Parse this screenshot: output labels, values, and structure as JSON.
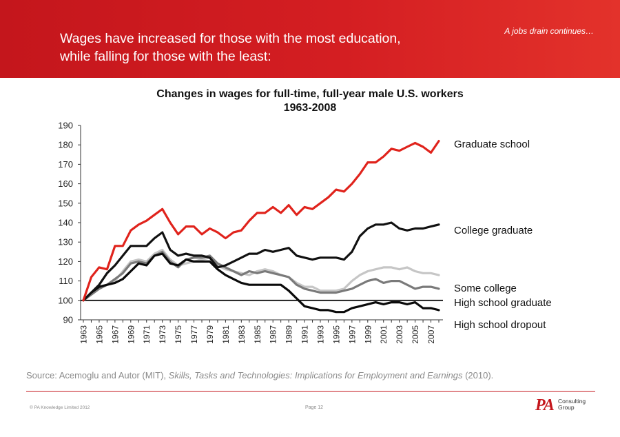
{
  "header": {
    "title_line1": "Wages have increased for those with the most education,",
    "title_line2": "while falling for those with the least:",
    "tag": "A jobs drain continues…",
    "banner_color": "#d41e22"
  },
  "source": {
    "prefix": "Source: Acemoglu and Autor (MIT), ",
    "work": "Skills, Tasks and Technologies: Implications for Employment and Earnings",
    "suffix": " (2010)."
  },
  "footer": {
    "copyright": "© PA Knowledge Limited 2012",
    "page": "Page 12",
    "logo_text": "PA",
    "logo_sub_line1": "Consulting",
    "logo_sub_line2": "Group"
  },
  "chart_data": {
    "type": "line",
    "title_line1": "Changes in wages for full-time, full-year male U.S. workers",
    "title_line2": "1963-2008",
    "xlabel": "",
    "ylabel": "",
    "ylim": [
      90,
      190
    ],
    "yticks": [
      90,
      100,
      110,
      120,
      130,
      140,
      150,
      160,
      170,
      180,
      190
    ],
    "xlim": [
      1963,
      2008
    ],
    "xticks": [
      1963,
      1965,
      1967,
      1969,
      1971,
      1973,
      1975,
      1977,
      1979,
      1981,
      1983,
      1985,
      1987,
      1989,
      1991,
      1993,
      1995,
      1997,
      1999,
      2001,
      2003,
      2005,
      2007
    ],
    "grid": false,
    "legend": "right",
    "reference_line": 100,
    "x": [
      1963,
      1964,
      1965,
      1966,
      1967,
      1968,
      1969,
      1970,
      1971,
      1972,
      1973,
      1974,
      1975,
      1976,
      1977,
      1978,
      1979,
      1980,
      1981,
      1982,
      1983,
      1984,
      1985,
      1986,
      1987,
      1988,
      1989,
      1990,
      1991,
      1992,
      1993,
      1994,
      1995,
      1996,
      1997,
      1998,
      1999,
      2000,
      2001,
      2002,
      2003,
      2004,
      2005,
      2006,
      2007,
      2008
    ],
    "series": [
      {
        "name": "Graduate school",
        "color": "#e0231c",
        "values": [
          100,
          112,
          117,
          116,
          128,
          128,
          136,
          139,
          141,
          144,
          147,
          140,
          134,
          138,
          138,
          134,
          137,
          135,
          132,
          135,
          136,
          141,
          145,
          145,
          148,
          145,
          149,
          144,
          148,
          147,
          150,
          153,
          157,
          156,
          160,
          165,
          171,
          171,
          174,
          178,
          177,
          179,
          181,
          179,
          176,
          182
        ]
      },
      {
        "name": "College graduate",
        "color": "#111111",
        "values": [
          100,
          104,
          108,
          114,
          118,
          123,
          128,
          128,
          128,
          132,
          135,
          126,
          123,
          124,
          123,
          123,
          122,
          117,
          118,
          120,
          122,
          124,
          124,
          126,
          125,
          126,
          127,
          123,
          122,
          121,
          122,
          122,
          122,
          121,
          125,
          133,
          137,
          139,
          139,
          140,
          137,
          136,
          137,
          137,
          138,
          139
        ]
      },
      {
        "name": "Some college",
        "color": "#c6c6c6",
        "values": [
          100,
          103,
          106,
          108,
          110,
          115,
          120,
          121,
          120,
          124,
          126,
          121,
          118,
          119,
          120,
          121,
          122,
          118,
          116,
          115,
          114,
          113,
          115,
          116,
          115,
          113,
          112,
          109,
          107,
          107,
          105,
          105,
          105,
          106,
          110,
          113,
          115,
          116,
          117,
          117,
          116,
          117,
          115,
          114,
          114,
          113
        ]
      },
      {
        "name": "High school graduate",
        "color": "#7a7a7a",
        "values": [
          100,
          103,
          106,
          108,
          111,
          114,
          119,
          120,
          119,
          123,
          125,
          120,
          117,
          121,
          122,
          122,
          123,
          119,
          117,
          115,
          113,
          115,
          114,
          115,
          114,
          113,
          112,
          108,
          106,
          105,
          104,
          104,
          104,
          105,
          106,
          108,
          110,
          111,
          109,
          110,
          110,
          108,
          106,
          107,
          107,
          106
        ]
      },
      {
        "name": "High school dropout",
        "color": "#0a0a0a",
        "values": [
          100,
          104,
          107,
          108,
          109,
          111,
          115,
          119,
          118,
          123,
          124,
          119,
          118,
          121,
          120,
          120,
          120,
          116,
          113,
          111,
          109,
          108,
          108,
          108,
          108,
          108,
          105,
          101,
          97,
          96,
          95,
          95,
          94,
          94,
          96,
          97,
          98,
          99,
          98,
          99,
          99,
          98,
          99,
          96,
          96,
          95
        ]
      }
    ]
  }
}
